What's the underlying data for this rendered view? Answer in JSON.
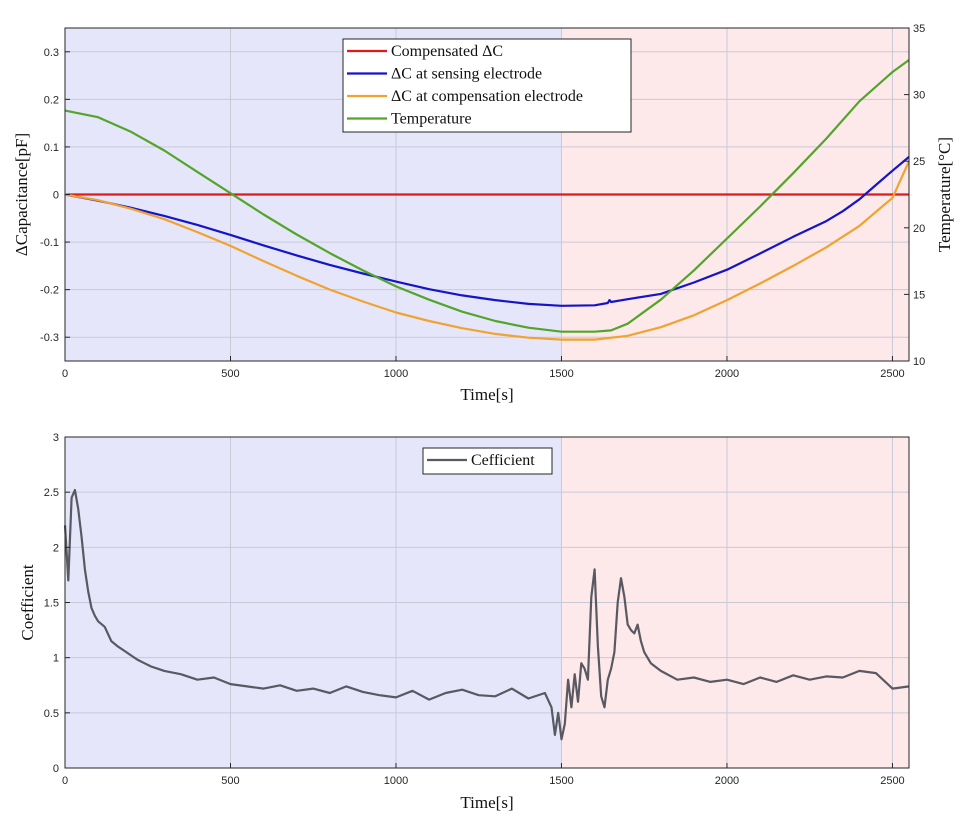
{
  "chart_data": [
    {
      "type": "line",
      "xlabel": "Time[s]",
      "ylabel": "ΔCapacitance[pF]",
      "y2label": "Temperature[°C]",
      "xlim": [
        0,
        2550
      ],
      "ylim": [
        -0.35,
        0.35
      ],
      "y2lim": [
        10,
        35
      ],
      "xticks": [
        0,
        500,
        1000,
        1500,
        2000,
        2500
      ],
      "yticks": [
        -0.3,
        -0.2,
        -0.1,
        0,
        0.1,
        0.2,
        0.3
      ],
      "y2ticks": [
        10,
        15,
        20,
        25,
        30,
        35
      ],
      "grid": true,
      "legend_position": "top-center",
      "shaded_regions": [
        {
          "x": [
            0,
            1500
          ],
          "color": "#e6e6fa"
        },
        {
          "x": [
            1500,
            2550
          ],
          "color": "#fde8ea"
        }
      ],
      "series": [
        {
          "name": "Compensated ΔC",
          "color": "#e0191b",
          "axis": "left",
          "x": [
            0,
            500,
            1000,
            1500,
            2000,
            2550
          ],
          "y": [
            0,
            0,
            0,
            0,
            0,
            0
          ]
        },
        {
          "name": "ΔC at sensing electrode",
          "color": "#1515c8",
          "axis": "left",
          "x": [
            0,
            100,
            200,
            300,
            400,
            500,
            600,
            700,
            800,
            900,
            1000,
            1100,
            1200,
            1300,
            1400,
            1500,
            1600,
            1640,
            1645,
            1650,
            1700,
            1800,
            1900,
            2000,
            2100,
            2200,
            2300,
            2350,
            2400,
            2450,
            2500,
            2550
          ],
          "y": [
            0,
            -0.013,
            -0.028,
            -0.045,
            -0.064,
            -0.085,
            -0.107,
            -0.128,
            -0.148,
            -0.166,
            -0.183,
            -0.199,
            -0.212,
            -0.222,
            -0.23,
            -0.234,
            -0.233,
            -0.228,
            -0.222,
            -0.226,
            -0.22,
            -0.209,
            -0.185,
            -0.158,
            -0.124,
            -0.089,
            -0.056,
            -0.035,
            -0.01,
            0.02,
            0.05,
            0.079
          ]
        },
        {
          "name": "ΔC at compensation electrode",
          "color": "#f0a330",
          "axis": "left",
          "x": [
            0,
            100,
            200,
            300,
            400,
            500,
            600,
            700,
            800,
            900,
            1000,
            1100,
            1200,
            1300,
            1400,
            1500,
            1600,
            1700,
            1800,
            1900,
            2000,
            2100,
            2200,
            2300,
            2400,
            2500,
            2550
          ],
          "y": [
            0,
            -0.012,
            -0.03,
            -0.052,
            -0.079,
            -0.108,
            -0.14,
            -0.171,
            -0.2,
            -0.225,
            -0.248,
            -0.266,
            -0.281,
            -0.293,
            -0.301,
            -0.305,
            -0.305,
            -0.297,
            -0.279,
            -0.254,
            -0.222,
            -0.187,
            -0.15,
            -0.111,
            -0.066,
            -0.007,
            0.07
          ]
        },
        {
          "name": "Temperature",
          "color": "#52a52a",
          "axis": "right",
          "x": [
            0,
            100,
            200,
            300,
            400,
            500,
            600,
            700,
            800,
            900,
            1000,
            1100,
            1200,
            1300,
            1400,
            1500,
            1600,
            1650,
            1700,
            1800,
            1900,
            2000,
            2100,
            2200,
            2300,
            2400,
            2500,
            2550
          ],
          "y": [
            28.8,
            28.3,
            27.2,
            25.8,
            24.2,
            22.6,
            21.0,
            19.5,
            18.1,
            16.8,
            15.6,
            14.6,
            13.7,
            13.0,
            12.5,
            12.2,
            12.2,
            12.3,
            12.8,
            14.6,
            16.8,
            19.2,
            21.6,
            24.1,
            26.7,
            29.5,
            31.7,
            32.6
          ]
        }
      ]
    },
    {
      "type": "line",
      "xlabel": "Time[s]",
      "ylabel": "Coefficient",
      "xlim": [
        0,
        2550
      ],
      "ylim": [
        0,
        3
      ],
      "xticks": [
        0,
        500,
        1000,
        1500,
        2000,
        2500
      ],
      "yticks": [
        0,
        0.5,
        1,
        1.5,
        2,
        2.5,
        3
      ],
      "grid": true,
      "legend_position": "top-center",
      "shaded_regions": [
        {
          "x": [
            0,
            1500
          ],
          "color": "#e6e6fa"
        },
        {
          "x": [
            1500,
            2550
          ],
          "color": "#fde8ea"
        }
      ],
      "series": [
        {
          "name": "Cefficient",
          "color": "#595962",
          "axis": "left",
          "x": [
            0,
            10,
            20,
            30,
            40,
            50,
            60,
            70,
            80,
            90,
            100,
            120,
            140,
            160,
            180,
            200,
            220,
            240,
            260,
            280,
            300,
            350,
            400,
            450,
            500,
            550,
            600,
            650,
            700,
            750,
            800,
            850,
            900,
            950,
            1000,
            1050,
            1100,
            1150,
            1200,
            1250,
            1300,
            1350,
            1400,
            1450,
            1470,
            1480,
            1490,
            1500,
            1510,
            1520,
            1530,
            1540,
            1550,
            1560,
            1570,
            1580,
            1590,
            1600,
            1610,
            1620,
            1630,
            1640,
            1650,
            1660,
            1670,
            1680,
            1690,
            1700,
            1710,
            1720,
            1730,
            1740,
            1750,
            1770,
            1800,
            1850,
            1900,
            1950,
            2000,
            2050,
            2100,
            2150,
            2200,
            2250,
            2300,
            2350,
            2400,
            2450,
            2500,
            2550
          ],
          "y": [
            2.2,
            1.7,
            2.45,
            2.52,
            2.35,
            2.1,
            1.8,
            1.6,
            1.45,
            1.38,
            1.33,
            1.28,
            1.15,
            1.1,
            1.06,
            1.02,
            0.98,
            0.95,
            0.92,
            0.9,
            0.88,
            0.85,
            0.8,
            0.82,
            0.76,
            0.74,
            0.72,
            0.75,
            0.7,
            0.72,
            0.68,
            0.74,
            0.69,
            0.66,
            0.64,
            0.7,
            0.62,
            0.68,
            0.71,
            0.66,
            0.65,
            0.72,
            0.63,
            0.68,
            0.55,
            0.3,
            0.5,
            0.26,
            0.4,
            0.8,
            0.55,
            0.85,
            0.6,
            0.95,
            0.9,
            0.8,
            1.55,
            1.8,
            1.1,
            0.65,
            0.55,
            0.8,
            0.9,
            1.05,
            1.5,
            1.72,
            1.55,
            1.3,
            1.25,
            1.22,
            1.3,
            1.15,
            1.05,
            0.95,
            0.88,
            0.8,
            0.82,
            0.78,
            0.8,
            0.76,
            0.82,
            0.78,
            0.84,
            0.8,
            0.83,
            0.82,
            0.88,
            0.86,
            0.72,
            0.74
          ]
        }
      ]
    }
  ]
}
